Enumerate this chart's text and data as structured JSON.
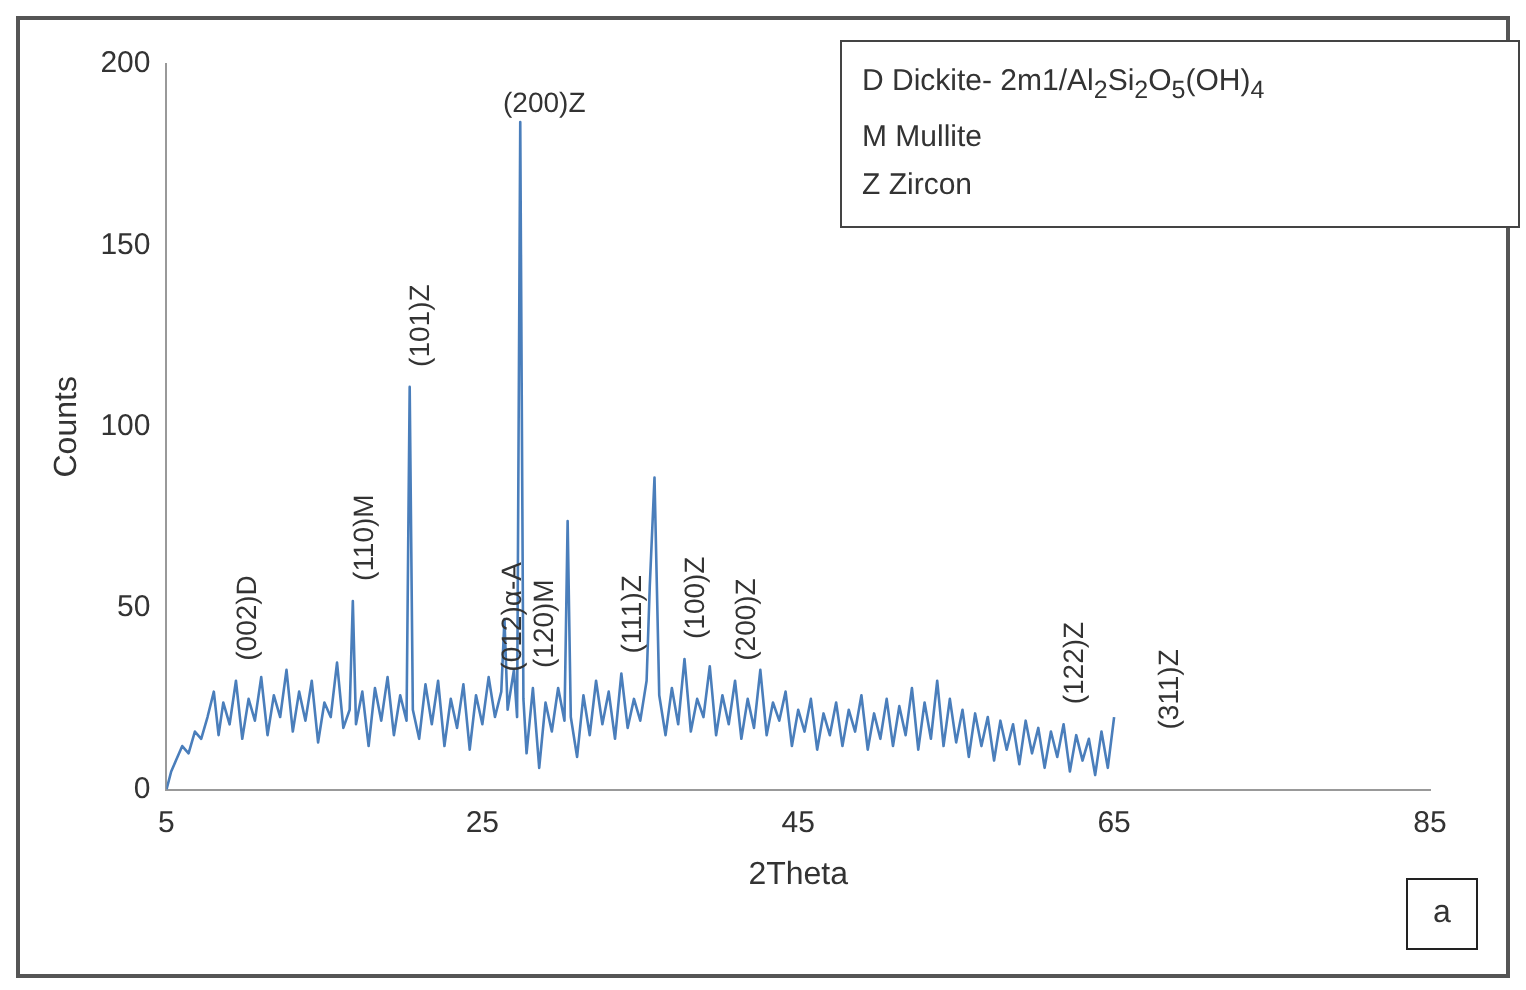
{
  "chart_data": {
    "type": "line",
    "xlabel": "2Theta",
    "ylabel": "Counts",
    "xlim": [
      5,
      85
    ],
    "xticks": [
      5,
      25,
      45,
      65,
      85
    ],
    "ylim": [
      0,
      200
    ],
    "yticks": [
      0,
      50,
      100,
      150,
      200
    ],
    "grid": false,
    "legend": false,
    "marker": "none",
    "line_style": "solid",
    "series": [
      {
        "color": "#4a7ebb",
        "x": [
          5,
          5.3,
          5.6,
          6,
          6.4,
          6.8,
          7.2,
          7.6,
          8,
          8.3,
          8.6,
          9,
          9.4,
          9.8,
          10.2,
          10.6,
          11,
          11.4,
          11.8,
          12.2,
          12.6,
          13,
          13.4,
          13.8,
          14.2,
          14.6,
          15,
          15.4,
          15.8,
          16.2,
          16.6,
          16.8,
          17,
          17.4,
          17.8,
          18.2,
          18.6,
          19,
          19.4,
          19.8,
          20.2,
          20.4,
          20.6,
          21,
          21.4,
          21.8,
          22.2,
          22.6,
          23,
          23.4,
          23.8,
          24.2,
          24.6,
          25,
          25.4,
          25.8,
          26.2,
          26.4,
          26.6,
          27,
          27.2,
          27.4,
          27.6,
          27.8,
          28.2,
          28.6,
          29,
          29.4,
          29.8,
          30.2,
          30.4,
          30.6,
          31,
          31.4,
          31.8,
          32.2,
          32.6,
          33,
          33.4,
          33.8,
          34.2,
          34.6,
          35,
          35.4,
          35.6,
          35.9,
          36.2,
          36.6,
          37,
          37.4,
          37.8,
          38.2,
          38.6,
          39,
          39.4,
          39.8,
          40.2,
          40.6,
          41,
          41.4,
          41.8,
          42.2,
          42.6,
          43,
          43.4,
          43.8,
          44.2,
          44.6,
          45,
          45.4,
          45.8,
          46.2,
          46.6,
          47,
          47.4,
          47.8,
          48.2,
          48.6,
          49,
          49.4,
          49.8,
          50.2,
          50.6,
          51,
          51.4,
          51.8,
          52.2,
          52.6,
          53,
          53.4,
          53.8,
          54.2,
          54.6,
          55,
          55.4,
          55.8,
          56.2,
          56.6,
          57,
          57.4,
          57.8,
          58.2,
          58.6,
          59,
          59.4,
          59.8,
          60.2,
          60.6,
          61,
          61.4,
          61.8,
          62.2,
          62.6,
          63,
          63.4,
          63.8,
          64.2,
          64.6,
          65
        ],
        "values": [
          0,
          5,
          8,
          12,
          10,
          16,
          14,
          20,
          27,
          15,
          24,
          18,
          30,
          14,
          25,
          19,
          31,
          15,
          26,
          20,
          33,
          16,
          27,
          19,
          30,
          13,
          24,
          20,
          35,
          17,
          22,
          52,
          18,
          27,
          12,
          28,
          19,
          31,
          15,
          26,
          19,
          111,
          22,
          14,
          29,
          18,
          30,
          12,
          25,
          17,
          29,
          11,
          26,
          18,
          31,
          20,
          27,
          47,
          22,
          33,
          20,
          184,
          25,
          10,
          28,
          6,
          24,
          16,
          28,
          19,
          74,
          20,
          9,
          26,
          15,
          30,
          18,
          27,
          14,
          32,
          17,
          25,
          19,
          30,
          56,
          86,
          26,
          15,
          28,
          18,
          36,
          16,
          25,
          20,
          34,
          15,
          26,
          18,
          30,
          14,
          25,
          17,
          33,
          15,
          24,
          19,
          27,
          12,
          22,
          16,
          25,
          11,
          21,
          15,
          24,
          12,
          22,
          16,
          26,
          11,
          21,
          14,
          25,
          12,
          23,
          15,
          28,
          11,
          24,
          14,
          30,
          12,
          25,
          13,
          22,
          9,
          21,
          12,
          20,
          8,
          19,
          11,
          18,
          7,
          19,
          10,
          17,
          6,
          16,
          9,
          18,
          5,
          15,
          8,
          14,
          4,
          16,
          6,
          20
        ]
      }
    ],
    "annotations": [
      {
        "text": "(002)D",
        "x": 9.4,
        "y": 30
      },
      {
        "text": "(110)M",
        "x": 16.8,
        "y": 52
      },
      {
        "text": "(101)Z",
        "x": 20.4,
        "y": 111
      },
      {
        "text": "(200)Z",
        "x": 27.4,
        "y": 184
      },
      {
        "text": "(012)α-A",
        "x": 26.2,
        "y": 27
      },
      {
        "text": "(120)M",
        "x": 28.2,
        "y": 28
      },
      {
        "text": "(111)Z",
        "x": 33.8,
        "y": 32
      },
      {
        "text": "(100)Z",
        "x": 37.8,
        "y": 36
      },
      {
        "text": "(200)Z",
        "x": 41,
        "y": 30
      },
      {
        "text": "(122)Z",
        "x": 61.8,
        "y": 18
      },
      "(311)Z",
      "D Dickite- 2m1/Al$_{2}$Si$_{2}$O$_{5}$(OH)$_{4}$",
      "M Mullite",
      "Z Zircon",
      "a"
    ]
  }
}
